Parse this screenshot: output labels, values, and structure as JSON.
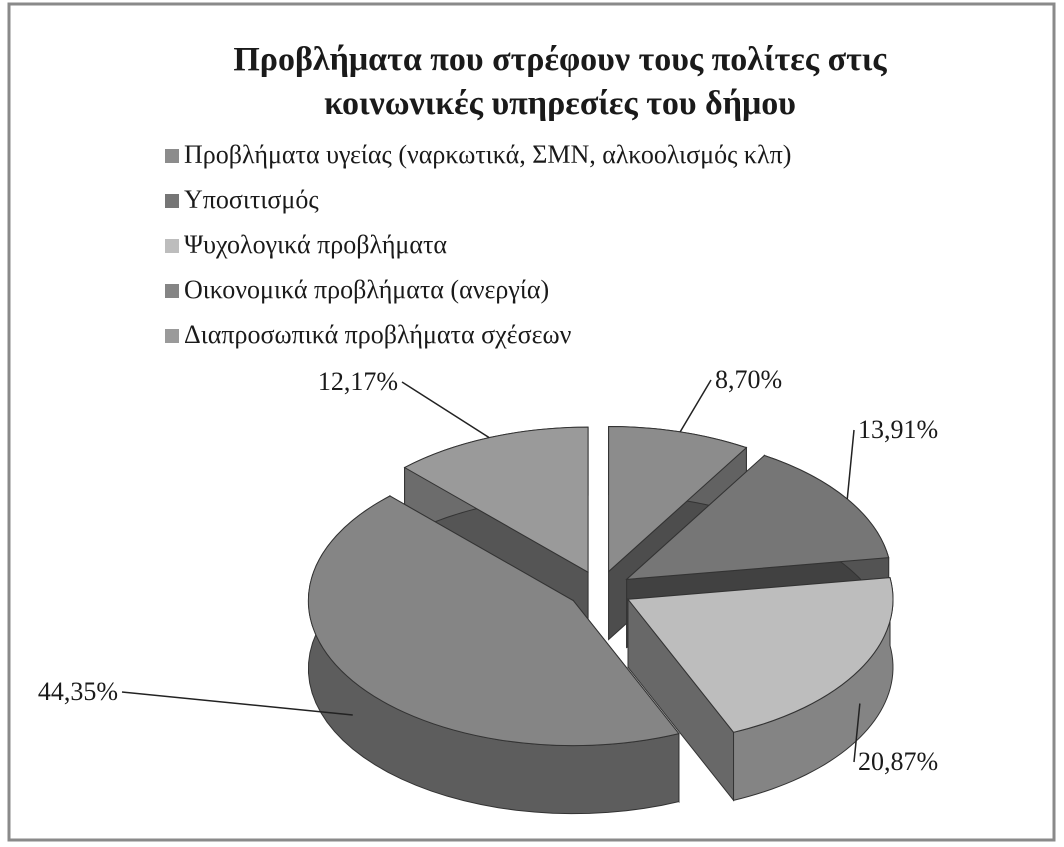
{
  "chart_data": {
    "type": "pie",
    "title": "Προβλήματα που στρέφουν τους πολίτες στις κοινωνικές υπηρεσίες του δήμου",
    "categories": [
      "Προβλήματα υγείας (ναρκωτικά, ΣΜΝ, αλκοολισμός κλπ)",
      "Υποσιτισμός",
      "Ψυχολογικά προβλήματα",
      "Οικονομικά προβλήματα (ανεργία)",
      "Διαπροσωπικά προβλήματα σχέσεων"
    ],
    "values": [
      8.7,
      13.91,
      20.87,
      44.35,
      12.17
    ],
    "value_labels": [
      "8,70%",
      "13,91%",
      "20,87%",
      "44,35%",
      "12,17%"
    ],
    "colors": [
      "#8c8c8c",
      "#767676",
      "#bdbdbd",
      "#858585",
      "#9a9a9a"
    ],
    "legend": "top"
  }
}
